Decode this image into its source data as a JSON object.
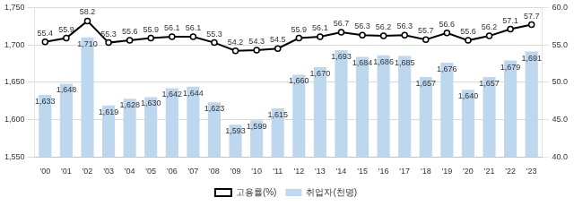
{
  "chart_data": {
    "type": "bar",
    "categories": [
      "'00",
      "'01",
      "'02",
      "'03",
      "'04",
      "'05",
      "'06",
      "'07",
      "'08",
      "'09",
      "'10",
      "'11",
      "'12",
      "'13",
      "'14",
      "'15",
      "'16",
      "'17",
      "'18",
      "'19",
      "'20",
      "'21",
      "'22",
      "'23"
    ],
    "series": [
      {
        "name": "취업자(천명)",
        "type": "bar",
        "color": "#bdd7ee",
        "values": [
          1633,
          1648,
          1710,
          1619,
          1628,
          1630,
          1642,
          1644,
          1623,
          1593,
          1599,
          1615,
          1660,
          1670,
          1693,
          1684,
          1686,
          1685,
          1657,
          1676,
          1640,
          1657,
          1679,
          1691
        ],
        "value_labels": [
          "1,633",
          "1,648",
          "1,710",
          "1,619",
          "1,628",
          "1,630",
          "1,642",
          "1,644",
          "1,623",
          "1,593",
          "1,599",
          "1,615",
          "1,660",
          "1,670",
          "1,693",
          "1,684",
          "1,686",
          "1,685",
          "1,657",
          "1,676",
          "1,640",
          "1,657",
          "1,679",
          "1,691"
        ]
      },
      {
        "name": "고용률(%)",
        "type": "line",
        "axis": "y2",
        "color": "#000000",
        "marker": "circle",
        "values": [
          55.4,
          55.9,
          58.2,
          55.3,
          55.6,
          55.9,
          56.1,
          56.1,
          55.3,
          54.2,
          54.3,
          54.5,
          55.9,
          56.1,
          56.7,
          56.3,
          56.2,
          56.3,
          55.7,
          56.6,
          55.6,
          56.2,
          57.1,
          57.7
        ]
      }
    ],
    "ylim": [
      1550,
      1750
    ],
    "yticks": [
      {
        "value": 1550,
        "label": "1,550"
      },
      {
        "value": 1600,
        "label": "1,600"
      },
      {
        "value": 1650,
        "label": "1,650"
      },
      {
        "value": 1700,
        "label": "1,700"
      },
      {
        "value": 1750,
        "label": "1,750"
      }
    ],
    "y2lim": [
      40,
      60
    ],
    "y2ticks": [
      {
        "value": 40,
        "label": "40.0"
      },
      {
        "value": 45,
        "label": "45.0"
      },
      {
        "value": 50,
        "label": "50.0"
      },
      {
        "value": 55,
        "label": "55.0"
      },
      {
        "value": 60,
        "label": "60.0"
      }
    ],
    "grid": true,
    "legend": "bottom",
    "data_labels": true
  }
}
